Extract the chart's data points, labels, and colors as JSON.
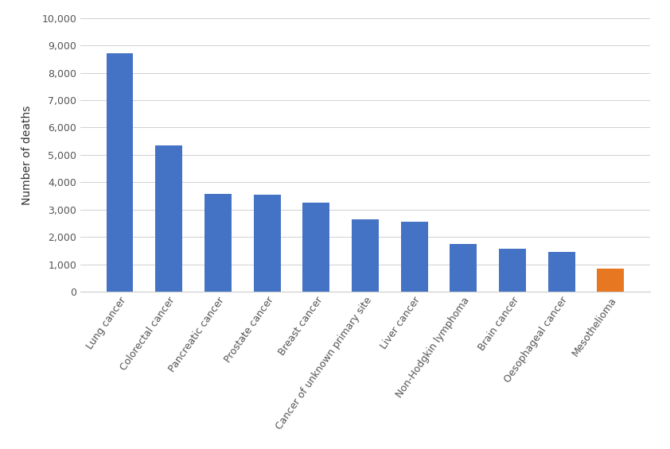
{
  "categories": [
    "Lung cancer",
    "Colorectal cancer",
    "Pancreatic cancer",
    "Prostate cancer",
    "Breast cancer",
    "Cancer of unknown primary site",
    "Liver cancer",
    "Non-Hodgkin lymphoma",
    "Brain cancer",
    "Oesophageal cancer",
    "Mesothelioma"
  ],
  "values": [
    8700,
    5350,
    3580,
    3560,
    3250,
    2640,
    2550,
    1750,
    1560,
    1450,
    850
  ],
  "bar_colors": [
    "#4472C4",
    "#4472C4",
    "#4472C4",
    "#4472C4",
    "#4472C4",
    "#4472C4",
    "#4472C4",
    "#4472C4",
    "#4472C4",
    "#4472C4",
    "#E87722"
  ],
  "ylabel": "Number of deaths",
  "ylim": [
    0,
    10000
  ],
  "yticks": [
    0,
    1000,
    2000,
    3000,
    4000,
    5000,
    6000,
    7000,
    8000,
    9000,
    10000
  ],
  "ytick_labels": [
    "0",
    "1,000",
    "2,000",
    "3,000",
    "4,000",
    "5,000",
    "6,000",
    "7,000",
    "8,000",
    "9,000",
    "10,000"
  ],
  "background_color": "#FFFFFF",
  "grid_color": "#D0D0D0",
  "bar_width": 0.55,
  "tick_label_fontsize": 9,
  "ylabel_fontsize": 10,
  "label_rotation": 55,
  "figsize": [
    8.42,
    5.65
  ],
  "dpi": 100
}
